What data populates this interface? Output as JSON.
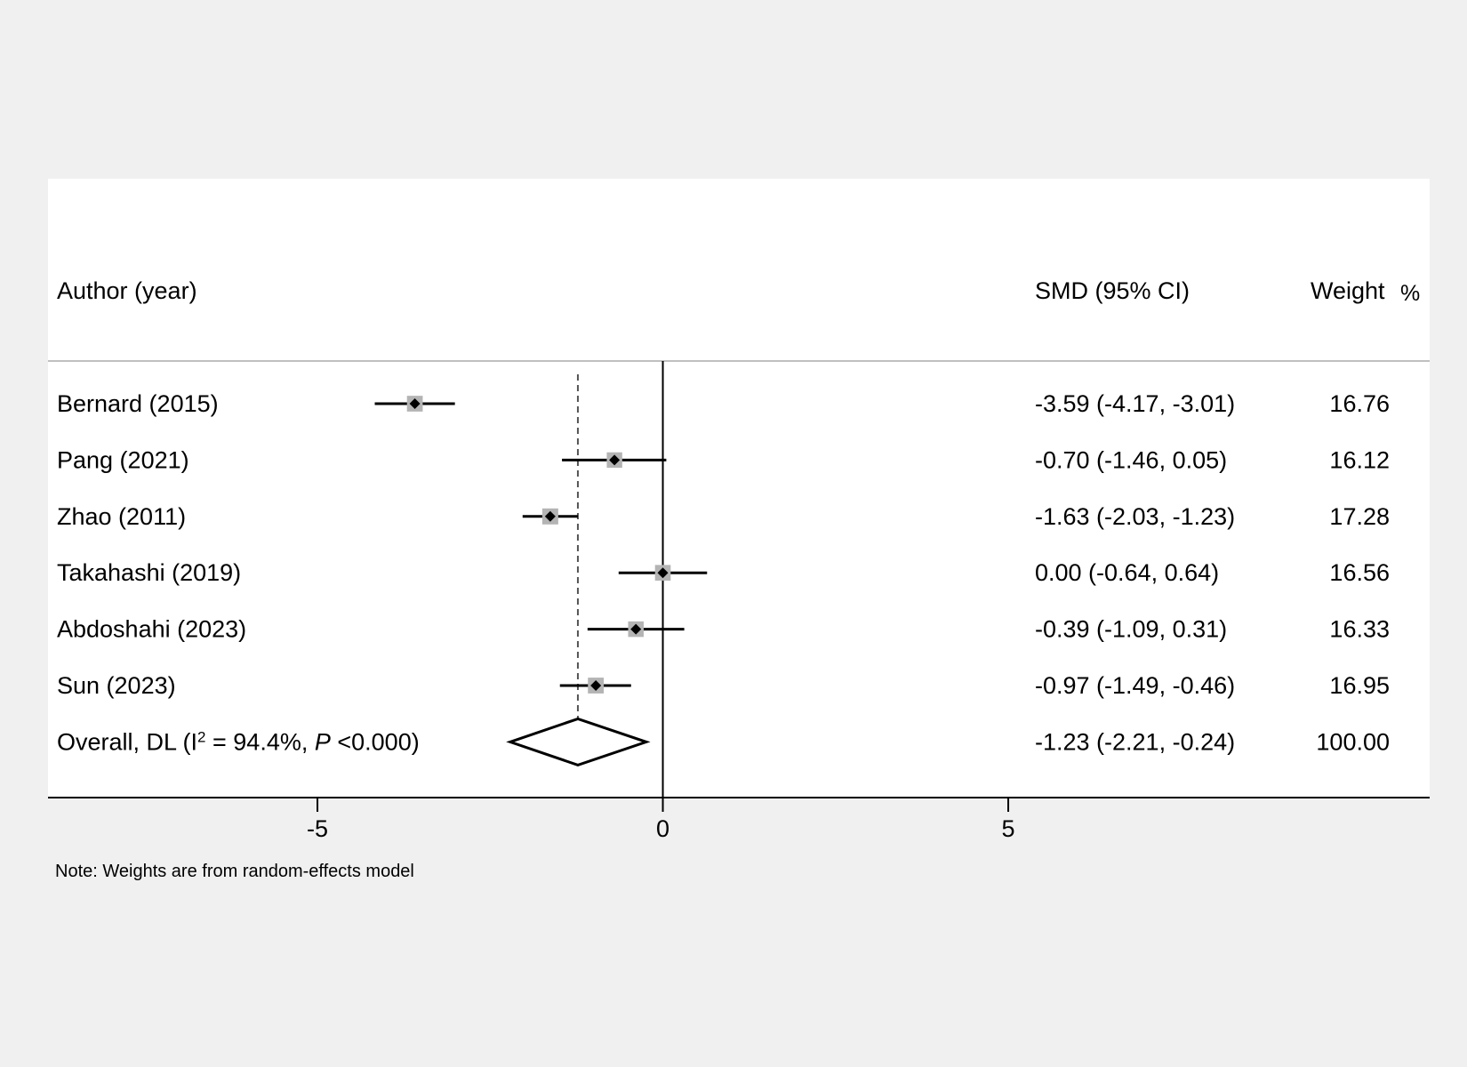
{
  "chart_data": {
    "type": "forest",
    "header": {
      "study": "Author (year)",
      "effect": "SMD (95% CI)",
      "weight": "Weight",
      "weight_unit": "%"
    },
    "studies": [
      {
        "label": "Bernard (2015)",
        "smd": -3.59,
        "lo": -4.17,
        "hi": -3.01,
        "ci_text": "-3.59 (-4.17, -3.01)",
        "weight": 16.76,
        "weight_text": "16.76"
      },
      {
        "label": "Pang (2021)",
        "smd": -0.7,
        "lo": -1.46,
        "hi": 0.05,
        "ci_text": "-0.70 (-1.46, 0.05)",
        "weight": 16.12,
        "weight_text": "16.12"
      },
      {
        "label": "Zhao (2011)",
        "smd": -1.63,
        "lo": -2.03,
        "hi": -1.23,
        "ci_text": "-1.63 (-2.03, -1.23)",
        "weight": 17.28,
        "weight_text": "17.28"
      },
      {
        "label": "Takahashi (2019)",
        "smd": 0.0,
        "lo": -0.64,
        "hi": 0.64,
        "ci_text": "0.00 (-0.64, 0.64)",
        "weight": 16.56,
        "weight_text": "16.56"
      },
      {
        "label": "Abdoshahi (2023)",
        "smd": -0.39,
        "lo": -1.09,
        "hi": 0.31,
        "ci_text": "-0.39 (-1.09, 0.31)",
        "weight": 16.33,
        "weight_text": "16.33"
      },
      {
        "label": "Sun (2023)",
        "smd": -0.97,
        "lo": -1.49,
        "hi": -0.46,
        "ci_text": "-0.97 (-1.49, -0.46)",
        "weight": 16.95,
        "weight_text": "16.95"
      }
    ],
    "overall": {
      "label_prefix": "Overall, DL (I",
      "label_sup": "2",
      "label_mid": " = 94.4%, ",
      "label_p": "P",
      "label_tail": " <0.000)",
      "smd": -1.23,
      "lo": -2.21,
      "hi": -0.24,
      "ci_text": "-1.23 (-2.21, -0.24)",
      "weight_text": "100.00"
    },
    "null_line": 0,
    "xlim": [
      -8.9,
      11.1
    ],
    "xticks": [
      -5,
      0,
      5
    ],
    "xtick_labels": [
      "-5",
      "0",
      "5"
    ],
    "note": "Note: Weights are from random-effects model",
    "colors": {
      "background": "#f0f0f0",
      "panel": "#ffffff",
      "ink": "#000000",
      "weight_box": "#b4b4b4",
      "divider": "#c0c0c0",
      "reference_line": "#555555"
    }
  }
}
